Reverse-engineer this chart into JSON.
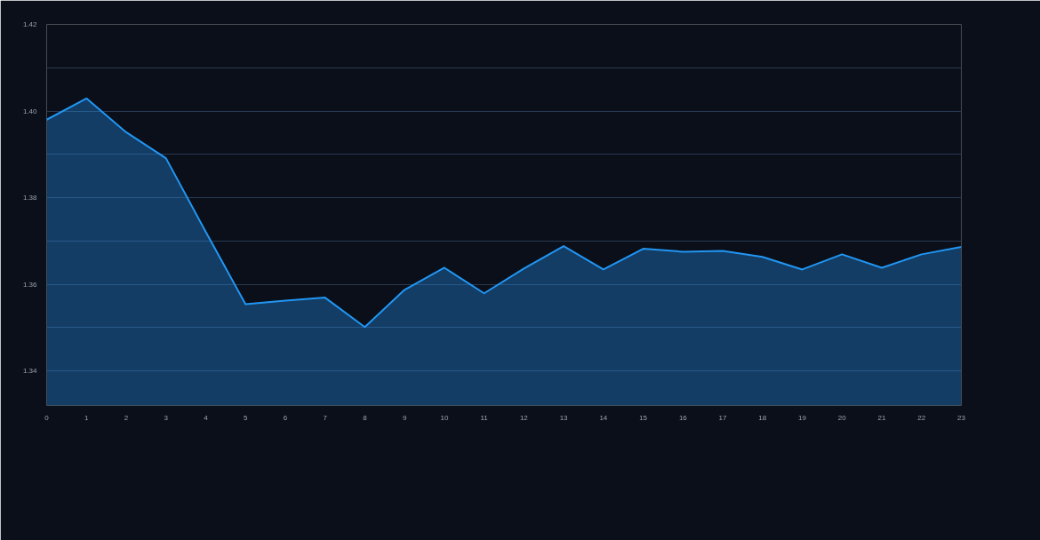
{
  "chart_data": {
    "type": "area",
    "x": [
      0,
      1,
      2,
      3,
      4,
      5,
      6,
      7,
      8,
      9,
      10,
      11,
      12,
      13,
      14,
      15,
      16,
      17,
      18,
      19,
      20,
      21,
      22,
      23
    ],
    "series": [
      {
        "color": "#2196f3",
        "values": [
          1.398,
          1.4029,
          1.3951,
          1.3891,
          1.3721,
          1.3554,
          1.3562,
          1.3569,
          1.3501,
          1.3587,
          1.3638,
          1.3579,
          1.3636,
          1.3688,
          1.3634,
          1.3682,
          1.3675,
          1.3677,
          1.3663,
          1.3634,
          1.3669,
          1.3638,
          1.3669,
          1.3686
        ]
      }
    ],
    "xlim": [
      0,
      23
    ],
    "ylim": [
      1.332,
      1.42
    ],
    "xticks": [
      0,
      1,
      2,
      3,
      4,
      5,
      6,
      7,
      8,
      9,
      10,
      11,
      12,
      13,
      14,
      15,
      16,
      17,
      18,
      19,
      20,
      21,
      22,
      23
    ],
    "yticks": [
      {
        "value": 1.34,
        "label": "1.34"
      },
      {
        "value": 1.35,
        "label": null
      },
      {
        "value": 1.36,
        "label": "1.36"
      },
      {
        "value": 1.37,
        "label": null
      },
      {
        "value": 1.38,
        "label": "1.38"
      },
      {
        "value": 1.39,
        "label": null
      },
      {
        "value": 1.4,
        "label": "1.40"
      },
      {
        "value": 1.41,
        "label": null
      },
      {
        "value": 1.42,
        "label": "1.42"
      }
    ],
    "grid": "y",
    "marker": "none",
    "line_style": "solid"
  }
}
